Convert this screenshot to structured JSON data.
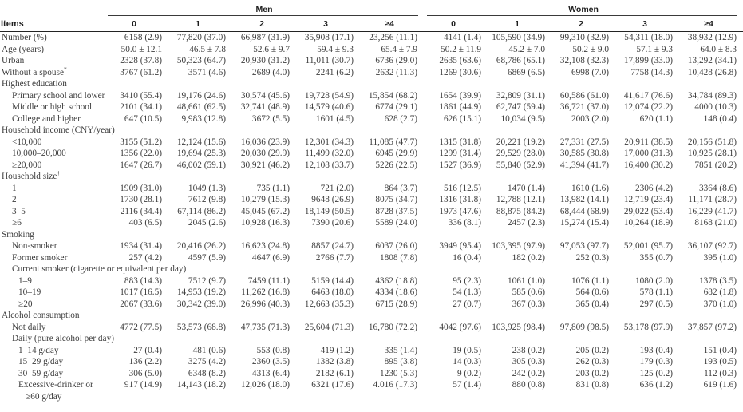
{
  "table": {
    "items_header": "Items",
    "group_headers": [
      {
        "label": "Men",
        "span": 5
      },
      {
        "label": "Women",
        "span": 5
      }
    ],
    "column_headers": [
      "0",
      "1",
      "2",
      "3",
      "≥4",
      "0",
      "1",
      "2",
      "3",
      "≥4"
    ],
    "rows": [
      {
        "label": "Number (%)",
        "indent": 0,
        "values": [
          "6158 (2.9)",
          "77,820 (37.0)",
          "66,987 (31.9)",
          "35,908 (17.1)",
          "23,256 (11.1)",
          "4141 (1.4)",
          "105,590 (34.9)",
          "99,310 (32.9)",
          "54,311 (18.0)",
          "38,932 (12.9)"
        ]
      },
      {
        "label": "Age (years)",
        "indent": 0,
        "values": [
          "50.0 ± 12.1",
          "46.5 ± 7.8",
          "52.6 ± 9.7",
          "59.4 ± 9.3",
          "65.4 ± 7.9",
          "50.2 ± 11.9",
          "45.2 ± 7.0",
          "50.2 ± 9.0",
          "57.1 ± 9.3",
          "64.0 ± 8.3"
        ]
      },
      {
        "label": "Urban",
        "indent": 0,
        "values": [
          "2328 (37.8)",
          "50,323 (64.7)",
          "20,930 (31.2)",
          "11,011 (30.7)",
          "6736 (29.0)",
          "2635 (63.6)",
          "68,786 (65.1)",
          "32,108 (32.3)",
          "17,899 (33.0)",
          "13,292 (34.1)"
        ]
      },
      {
        "label": "Without a spouse",
        "sup": "*",
        "indent": 0,
        "values": [
          "3767 (61.2)",
          "3571 (4.6)",
          "2689 (4.0)",
          "2241 (6.2)",
          "2632 (11.3)",
          "1269 (30.6)",
          "6869 (6.5)",
          "6998 (7.0)",
          "7758 (14.3)",
          "10,428 (26.8)"
        ]
      },
      {
        "label": "Highest education",
        "indent": 0,
        "values": null
      },
      {
        "label": "Primary school and lower",
        "indent": 1,
        "values": [
          "3410 (55.4)",
          "19,176 (24.6)",
          "30,574 (45.6)",
          "19,728 (54.9)",
          "15,854 (68.2)",
          "1654 (39.9)",
          "32,809 (31.1)",
          "60,586 (61.0)",
          "41,617 (76.6)",
          "34,784 (89.3)"
        ]
      },
      {
        "label": "Middle or high school",
        "indent": 1,
        "values": [
          "2101 (34.1)",
          "48,661 (62.5)",
          "32,741 (48.9)",
          "14,579 (40.6)",
          "6774 (29.1)",
          "1861 (44.9)",
          "62,747 (59.4)",
          "36,721 (37.0)",
          "12,074 (22.2)",
          "4000 (10.3)"
        ]
      },
      {
        "label": "College and higher",
        "indent": 1,
        "values": [
          "647 (10.5)",
          "9,983 (12.8)",
          "3672 (5.5)",
          "1601 (4.5)",
          "628 (2.7)",
          "626 (15.1)",
          "10,034 (9.5)",
          "2003 (2.0)",
          "620 (1.1)",
          "148 (0.4)"
        ]
      },
      {
        "label": "Household income (CNY/year)",
        "indent": 0,
        "values": null
      },
      {
        "label": "<10,000",
        "indent": 1,
        "values": [
          "3155 (51.2)",
          "12,124 (15.6)",
          "16,036 (23.9)",
          "12,301 (34.3)",
          "11,085 (47.7)",
          "1315 (31.8)",
          "20,221 (19.2)",
          "27,331 (27.5)",
          "20,911 (38.5)",
          "20,156 (51.8)"
        ]
      },
      {
        "label": "10,000–20,000",
        "indent": 1,
        "values": [
          "1356 (22.0)",
          "19,694 (25.3)",
          "20,030 (29.9)",
          "11,499 (32.0)",
          "6945 (29.9)",
          "1299 (31.4)",
          "29,529 (28.0)",
          "30,585 (30.8)",
          "17,000 (31.3)",
          "10,925 (28.1)"
        ]
      },
      {
        "label": "≥20,000",
        "indent": 1,
        "values": [
          "1647 (26.7)",
          "46,002 (59.1)",
          "30,921 (46.2)",
          "12,108 (33.7)",
          "5226 (22.5)",
          "1527 (36.9)",
          "55,840 (52.9)",
          "41,394 (41.7)",
          "16,400 (30.2)",
          "7851 (20.2)"
        ]
      },
      {
        "label": "Household size",
        "sup": "†",
        "indent": 0,
        "values": null
      },
      {
        "label": "1",
        "indent": 1,
        "values": [
          "1909 (31.0)",
          "1049 (1.3)",
          "735 (1.1)",
          "721 (2.0)",
          "864 (3.7)",
          "516 (12.5)",
          "1470 (1.4)",
          "1610 (1.6)",
          "2306 (4.2)",
          "3364 (8.6)"
        ]
      },
      {
        "label": "2",
        "indent": 1,
        "values": [
          "1730 (28.1)",
          "7612 (9.8)",
          "10,279 (15.3)",
          "9648 (26.9)",
          "8075 (34.7)",
          "1316 (31.8)",
          "12,788 (12.1)",
          "13,982 (14.1)",
          "12,719 (23.4)",
          "11,171 (28.7)"
        ]
      },
      {
        "label": "3–5",
        "indent": 1,
        "values": [
          "2116 (34.4)",
          "67,114 (86.2)",
          "45,045 (67.2)",
          "18,149 (50.5)",
          "8728 (37.5)",
          "1973 (47.6)",
          "88,875 (84.2)",
          "68,444 (68.9)",
          "29,022 (53.4)",
          "16,229 (41.7)"
        ]
      },
      {
        "label": "≥6",
        "indent": 1,
        "values": [
          "403 (6.5)",
          "2045 (2.6)",
          "10,928 (16.3)",
          "7390 (20.6)",
          "5589 (24.0)",
          "336 (8.1)",
          "2457 (2.3)",
          "15,274 (15.4)",
          "10,264 (18.9)",
          "8168 (21.0)"
        ]
      },
      {
        "label": "Smoking",
        "indent": 0,
        "values": null
      },
      {
        "label": "Non-smoker",
        "indent": 1,
        "values": [
          "1934 (31.4)",
          "20,416 (26.2)",
          "16,623 (24.8)",
          "8857 (24.7)",
          "6037 (26.0)",
          "3949 (95.4)",
          "103,395 (97.9)",
          "97,053 (97.7)",
          "52,001 (95.7)",
          "36,107 (92.7)"
        ]
      },
      {
        "label": "Former smoker",
        "indent": 1,
        "values": [
          "257 (4.2)",
          "4597 (5.9)",
          "4647 (6.9)",
          "2766 (7.7)",
          "1808 (7.8)",
          "16 (0.4)",
          "182 (0.2)",
          "252 (0.3)",
          "355 (0.7)",
          "395 (1.0)"
        ]
      },
      {
        "label": "Current smoker (cigarette or equivalent per day)",
        "indent": 1,
        "values": null
      },
      {
        "label": "1–9",
        "indent": 2,
        "values": [
          "883 (14.3)",
          "7512 (9.7)",
          "7459 (11.1)",
          "5159 (14.4)",
          "4362 (18.8)",
          "95 (2.3)",
          "1061 (1.0)",
          "1076 (1.1)",
          "1080 (2.0)",
          "1378 (3.5)"
        ]
      },
      {
        "label": "10–19",
        "indent": 2,
        "values": [
          "1017 (16.5)",
          "14,953 (19.2)",
          "11,262 (16.8)",
          "6463 (18.0)",
          "4334 (18.6)",
          "54 (1.3)",
          "585 (0.6)",
          "564 (0.6)",
          "578 (1.1)",
          "682 (1.8)"
        ]
      },
      {
        "label": "≥20",
        "indent": 2,
        "values": [
          "2067 (33.6)",
          "30,342 (39.0)",
          "26,996 (40.3)",
          "12,663 (35.3)",
          "6715 (28.9)",
          "27 (0.7)",
          "367 (0.3)",
          "365 (0.4)",
          "297 (0.5)",
          "370 (1.0)"
        ]
      },
      {
        "label": "Alcohol consumption",
        "indent": 0,
        "values": null
      },
      {
        "label": "Not daily",
        "indent": 1,
        "values": [
          "4772 (77.5)",
          "53,573 (68.8)",
          "47,735 (71.3)",
          "25,604 (71.3)",
          "16,780 (72.2)",
          "4042 (97.6)",
          "103,925 (98.4)",
          "97,809 (98.5)",
          "53,178 (97.9)",
          "37,857 (97.2)"
        ]
      },
      {
        "label": "Daily (pure alcohol per day)",
        "indent": 1,
        "values": null
      },
      {
        "label": "1–14 g/day",
        "indent": 2,
        "values": [
          "27 (0.4)",
          "481 (0.6)",
          "553 (0.8)",
          "419 (1.2)",
          "335 (1.4)",
          "19 (0.5)",
          "238 (0.2)",
          "205 (0.2)",
          "193 (0.4)",
          "151 (0.4)"
        ]
      },
      {
        "label": "15–29 g/day",
        "indent": 2,
        "values": [
          "136 (2.2)",
          "3275 (4.2)",
          "2360 (3.5)",
          "1382 (3.8)",
          "895 (3.8)",
          "14 (0.3)",
          "305 (0.3)",
          "262 (0.3)",
          "179 (0.3)",
          "193 (0.5)"
        ]
      },
      {
        "label": "30–59 g/day",
        "indent": 2,
        "values": [
          "306 (5.0)",
          "6348 (8.2)",
          "4313 (6.4)",
          "2182 (6.1)",
          "1230 (5.3)",
          "9 (0.2)",
          "242 (0.2)",
          "203 (0.2)",
          "125 (0.2)",
          "112 (0.3)"
        ]
      },
      {
        "label": "Excessive-drinker or",
        "label2": "≥60 g/day",
        "indent": 2,
        "values": [
          "917 (14.9)",
          "14,143 (18.2)",
          "12,026 (18.0)",
          "6321 (17.6)",
          "4.016 (17.3)",
          "57 (1.4)",
          "880 (0.8)",
          "831 (0.8)",
          "636 (1.2)",
          "619 (1.6)"
        ]
      }
    ]
  }
}
